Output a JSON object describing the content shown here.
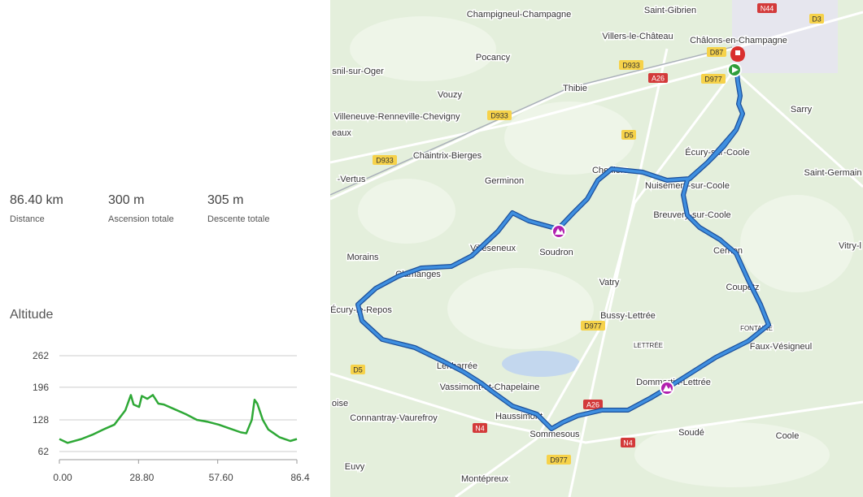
{
  "stats": [
    {
      "value": "86.40 km",
      "label": "Distance"
    },
    {
      "value": "300 m",
      "label": "Ascension totale"
    },
    {
      "value": "305 m",
      "label": "Descente totale"
    }
  ],
  "chart_data": {
    "type": "line",
    "title": "Altitude",
    "color": "#2ea836",
    "x": [
      0,
      3,
      8,
      12,
      16,
      20,
      24,
      26,
      27,
      29,
      30,
      32,
      34,
      36,
      38,
      42,
      46,
      50,
      54,
      58,
      62,
      66,
      68,
      70,
      71,
      72,
      74,
      76,
      78,
      80,
      82,
      84,
      86.4
    ],
    "values": [
      88,
      80,
      88,
      97,
      108,
      118,
      148,
      180,
      160,
      155,
      178,
      172,
      180,
      162,
      160,
      150,
      140,
      128,
      124,
      118,
      110,
      102,
      100,
      128,
      170,
      162,
      128,
      108,
      100,
      92,
      88,
      84,
      88
    ],
    "xlim": [
      0,
      86.4
    ],
    "ylim": [
      45,
      262
    ],
    "xticks": [
      {
        "value": 0,
        "label": "0.00"
      },
      {
        "value": 28.8,
        "label": "28.80"
      },
      {
        "value": 57.6,
        "label": "57.60"
      },
      86.4
    ],
    "yticks": [
      62,
      128,
      196,
      262
    ],
    "grid": true
  },
  "map": {
    "places": [
      "Champigneul-Champagne",
      "Saint-Gibrien",
      "Villers-le-Château",
      "Châlons-en-Champagne",
      "Pocancy",
      "snil-sur-Oger",
      "Thibie",
      "Vouzy",
      "Sarry",
      "Villeneuve-Renneville-Chevigny",
      "eaux",
      "Écury-sur-Coole",
      "Chaintrix-Bierges",
      "Saint-Germain",
      "-Vertus",
      "Germinon",
      "Cheniers",
      "Nuisement-sur-Coole",
      "Breuvery-sur-Coole",
      "Villeseneux",
      "Soudron",
      "Vitry-l",
      "Cernon",
      "Morains",
      "Clamanges",
      "Coupetz",
      "Vatry",
      "Écury-le-Repos",
      "Bussy-Lettrée",
      "FONTAINE",
      "LETTRÉE",
      "Faux-Vésigneul",
      "Lenharrée",
      "Dommartin-Lettrée",
      "Vassimont-et-Chapelaine",
      "oise",
      "Haussimont",
      "Connantray-Vaurefroy",
      "Sommesous",
      "Soudé",
      "Coole",
      "Euvy",
      "Montépreux"
    ],
    "roads": [
      "N44",
      "D3",
      "D87",
      "D933",
      "D977",
      "A26",
      "D933",
      "D5",
      "D933",
      "D977",
      "D5",
      "N4",
      "A26",
      "N4",
      "D977"
    ]
  }
}
